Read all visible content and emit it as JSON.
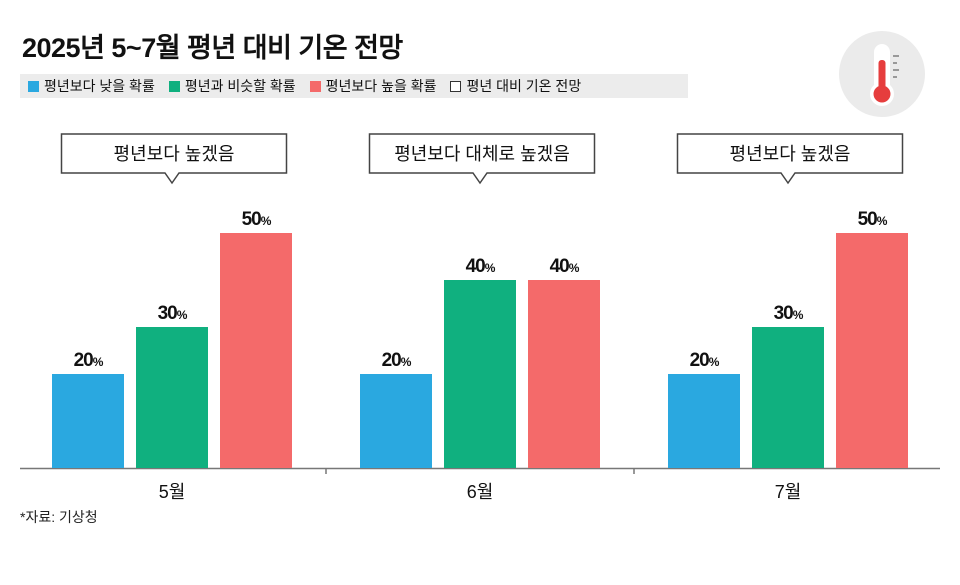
{
  "title": "2025년 5~7월 평년 대비 기온 전망",
  "legend": {
    "items": [
      {
        "label": "평년보다 낮을 확률",
        "color": "#2aa8e0"
      },
      {
        "label": "평년과 비슷할 확률",
        "color": "#10b07f"
      },
      {
        "label": "평년보다 높을 확률",
        "color": "#f46a6a"
      },
      {
        "label": "평년 대비 기온 전망",
        "color": "#ffffff"
      }
    ]
  },
  "icon": "thermometer-icon",
  "source": "*자료: 기상청",
  "chart_data": {
    "type": "bar",
    "categories": [
      "5월",
      "6월",
      "7월"
    ],
    "series": [
      {
        "name": "평년보다 낮을 확률",
        "color": "#2aa8e0",
        "values": [
          20,
          20,
          20
        ]
      },
      {
        "name": "평년과 비슷할 확률",
        "color": "#10b07f",
        "values": [
          30,
          40,
          30
        ]
      },
      {
        "name": "평년보다 높을 확률",
        "color": "#f46a6a",
        "values": [
          50,
          40,
          50
        ]
      }
    ],
    "value_suffix": "%",
    "outlooks": [
      "평년보다 높겠음",
      "평년보다 대체로 높겠음",
      "평년보다 높겠음"
    ],
    "ylim": [
      0,
      50
    ]
  }
}
